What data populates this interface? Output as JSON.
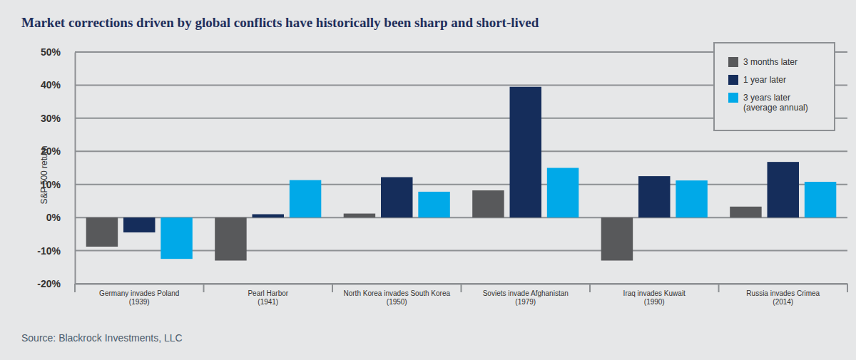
{
  "chart_data": {
    "type": "bar",
    "title": "Market corrections driven by global conflicts have historically been sharp and short-lived",
    "y_label": "S&P 500 return",
    "source": "Source: Blackrock Investments, LLC",
    "categories": [
      "Germany invades Poland\n(1939)",
      "Pearl Harbor\n(1941)",
      "North Korea invades South Korea\n(1950)",
      "Soviets invade Afghanistan\n(1979)",
      "Iraq invades Kuwait\n(1990)",
      "Russia invades Crimea\n(2014)"
    ],
    "series": [
      {
        "name": "3 months later",
        "color": "#58595b",
        "values": [
          -8.8,
          -13,
          1.2,
          8.2,
          -13,
          3.3
        ]
      },
      {
        "name": "1 year later",
        "color": "#152d5b",
        "values": [
          -4.5,
          1,
          12.2,
          39.5,
          12.5,
          16.8
        ]
      },
      {
        "name": "3 years later\n(average annual)",
        "color": "#00a9e8",
        "values": [
          -12.5,
          11.3,
          7.8,
          15,
          11.2,
          10.8
        ]
      }
    ],
    "ylim": [
      -20,
      50
    ],
    "yticks": [
      {
        "value": -20,
        "label": "-20%"
      },
      {
        "value": -10,
        "label": "-10%"
      },
      {
        "value": 0,
        "label": "0%"
      },
      {
        "value": 10,
        "label": "10%"
      },
      {
        "value": 20,
        "label": "20%"
      },
      {
        "value": 30,
        "label": "30%"
      },
      {
        "value": 40,
        "label": "40%"
      },
      {
        "value": 50,
        "label": "50%"
      }
    ],
    "grid": true,
    "legend": "top-right"
  }
}
